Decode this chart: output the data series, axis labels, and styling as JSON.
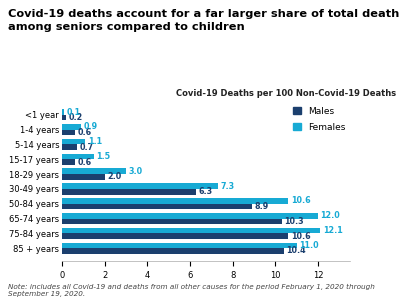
{
  "title": "Covid-19 deaths account for a far larger share of total deaths\namong seniors compared to children",
  "subtitle": "Covid-19 Deaths per 100 Non-Covid-19 Deaths",
  "note": "Note: includes all Covid-19 and deaths from all other causes for the period February 1, 2020 through\nSeptember 19, 2020.",
  "categories": [
    "<1 year",
    "1-4 years",
    "5-14 years",
    "15-17 years",
    "18-29 years",
    "30-49 years",
    "50-84 years",
    "65-74 years",
    "75-84 years",
    "85 + years"
  ],
  "males": [
    0.2,
    0.6,
    0.7,
    0.6,
    2.0,
    6.3,
    8.9,
    10.3,
    10.6,
    10.4
  ],
  "females": [
    0.1,
    0.9,
    1.1,
    1.5,
    3.0,
    7.3,
    10.6,
    12.0,
    12.1,
    11.0
  ],
  "male_color": "#1b3f6e",
  "female_color": "#17aad4",
  "xlim": [
    0,
    13.5
  ],
  "background_color": "#ffffff",
  "title_fontsize": 8.2,
  "subtitle_fontsize": 6.0,
  "tick_fontsize": 6.0,
  "label_fontsize": 5.8,
  "note_fontsize": 5.2,
  "legend_fontsize": 6.5
}
